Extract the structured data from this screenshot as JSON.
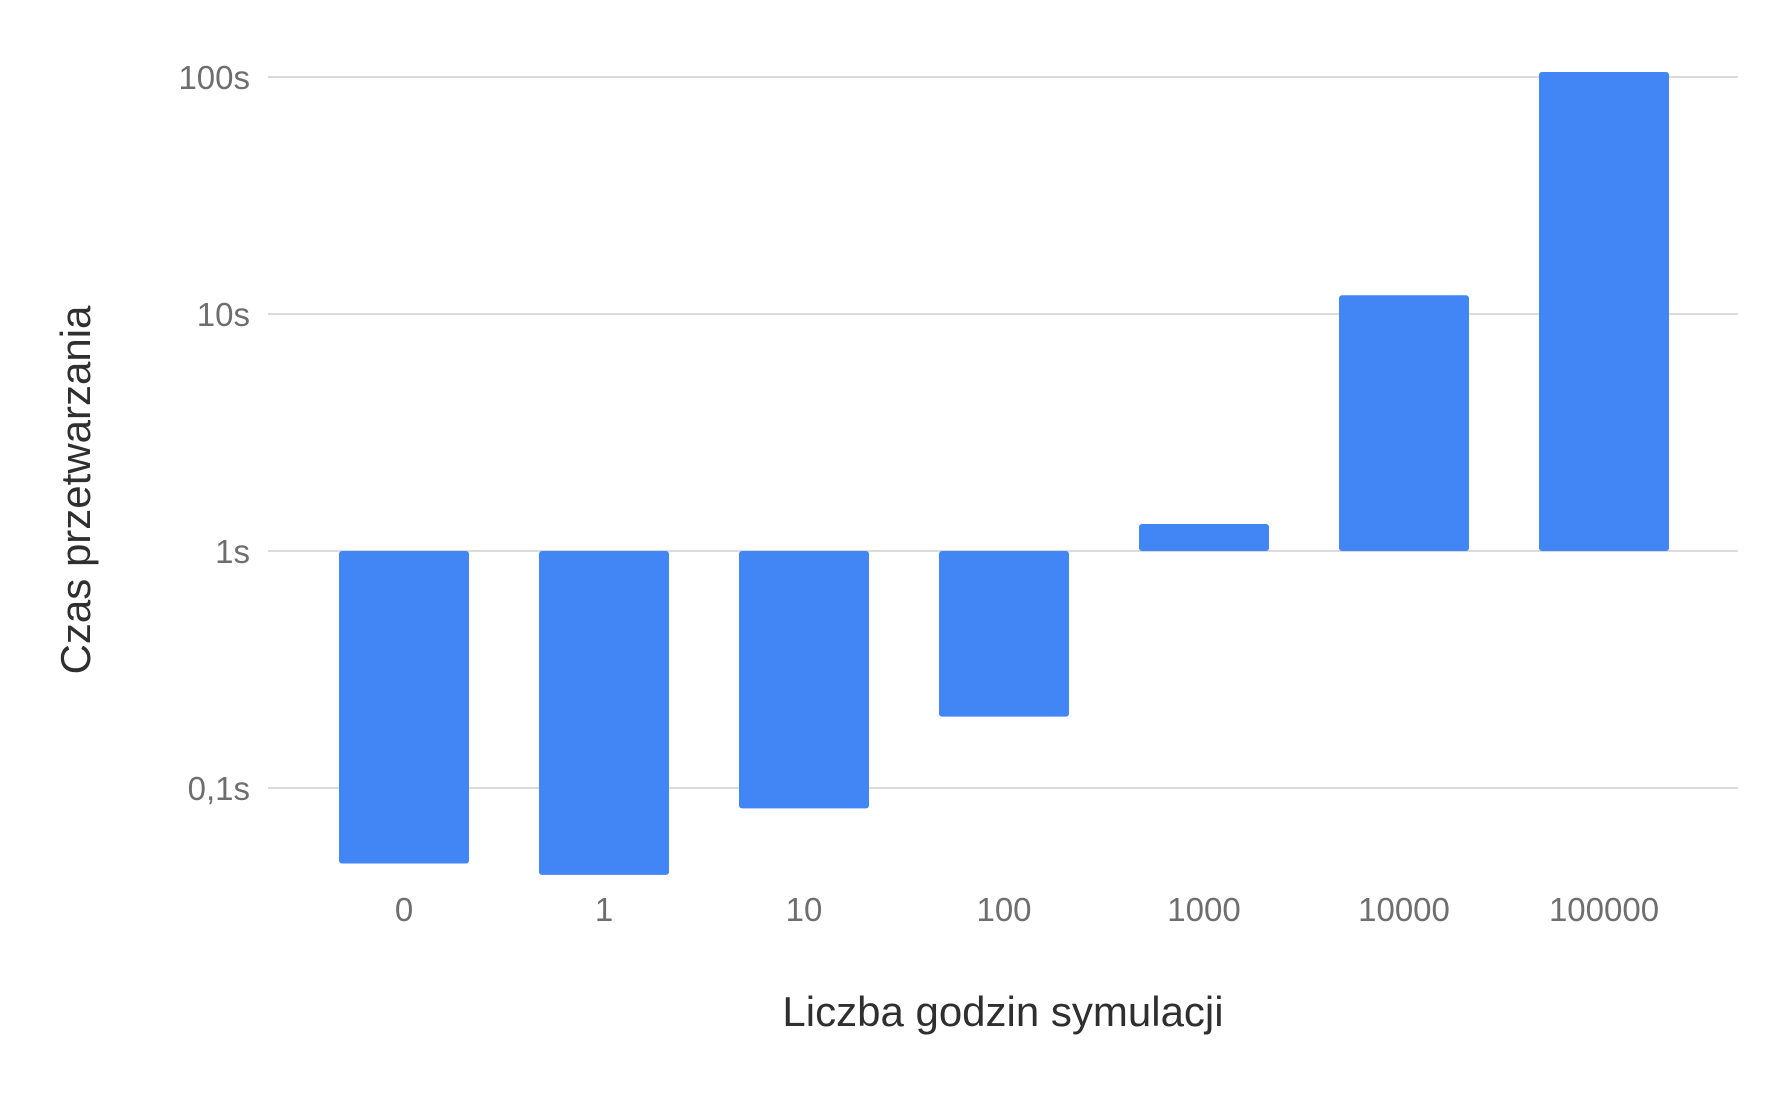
{
  "chart_data": {
    "type": "bar",
    "categories": [
      "0",
      "1",
      "10",
      "100",
      "1000",
      "10000",
      "100000"
    ],
    "values": [
      0.048,
      0.043,
      0.082,
      0.2,
      1.3,
      12,
      105
    ],
    "baseline": 1,
    "y_scale": "log",
    "ylim": [
      0.035,
      130
    ],
    "y_ticks": [
      0.1,
      1,
      10,
      100
    ],
    "y_tick_labels": [
      "0,1s",
      "1s",
      "10s",
      "100s"
    ],
    "xlabel": "Liczba godzin symulacji",
    "ylabel": "Czas przetwarzania",
    "grid": true,
    "legend": "none",
    "colors": {
      "bar": "#4285f4",
      "grid": "#cfcfcf",
      "tick_text": "#6e6e6e",
      "title_text": "#2f2f2f"
    }
  }
}
